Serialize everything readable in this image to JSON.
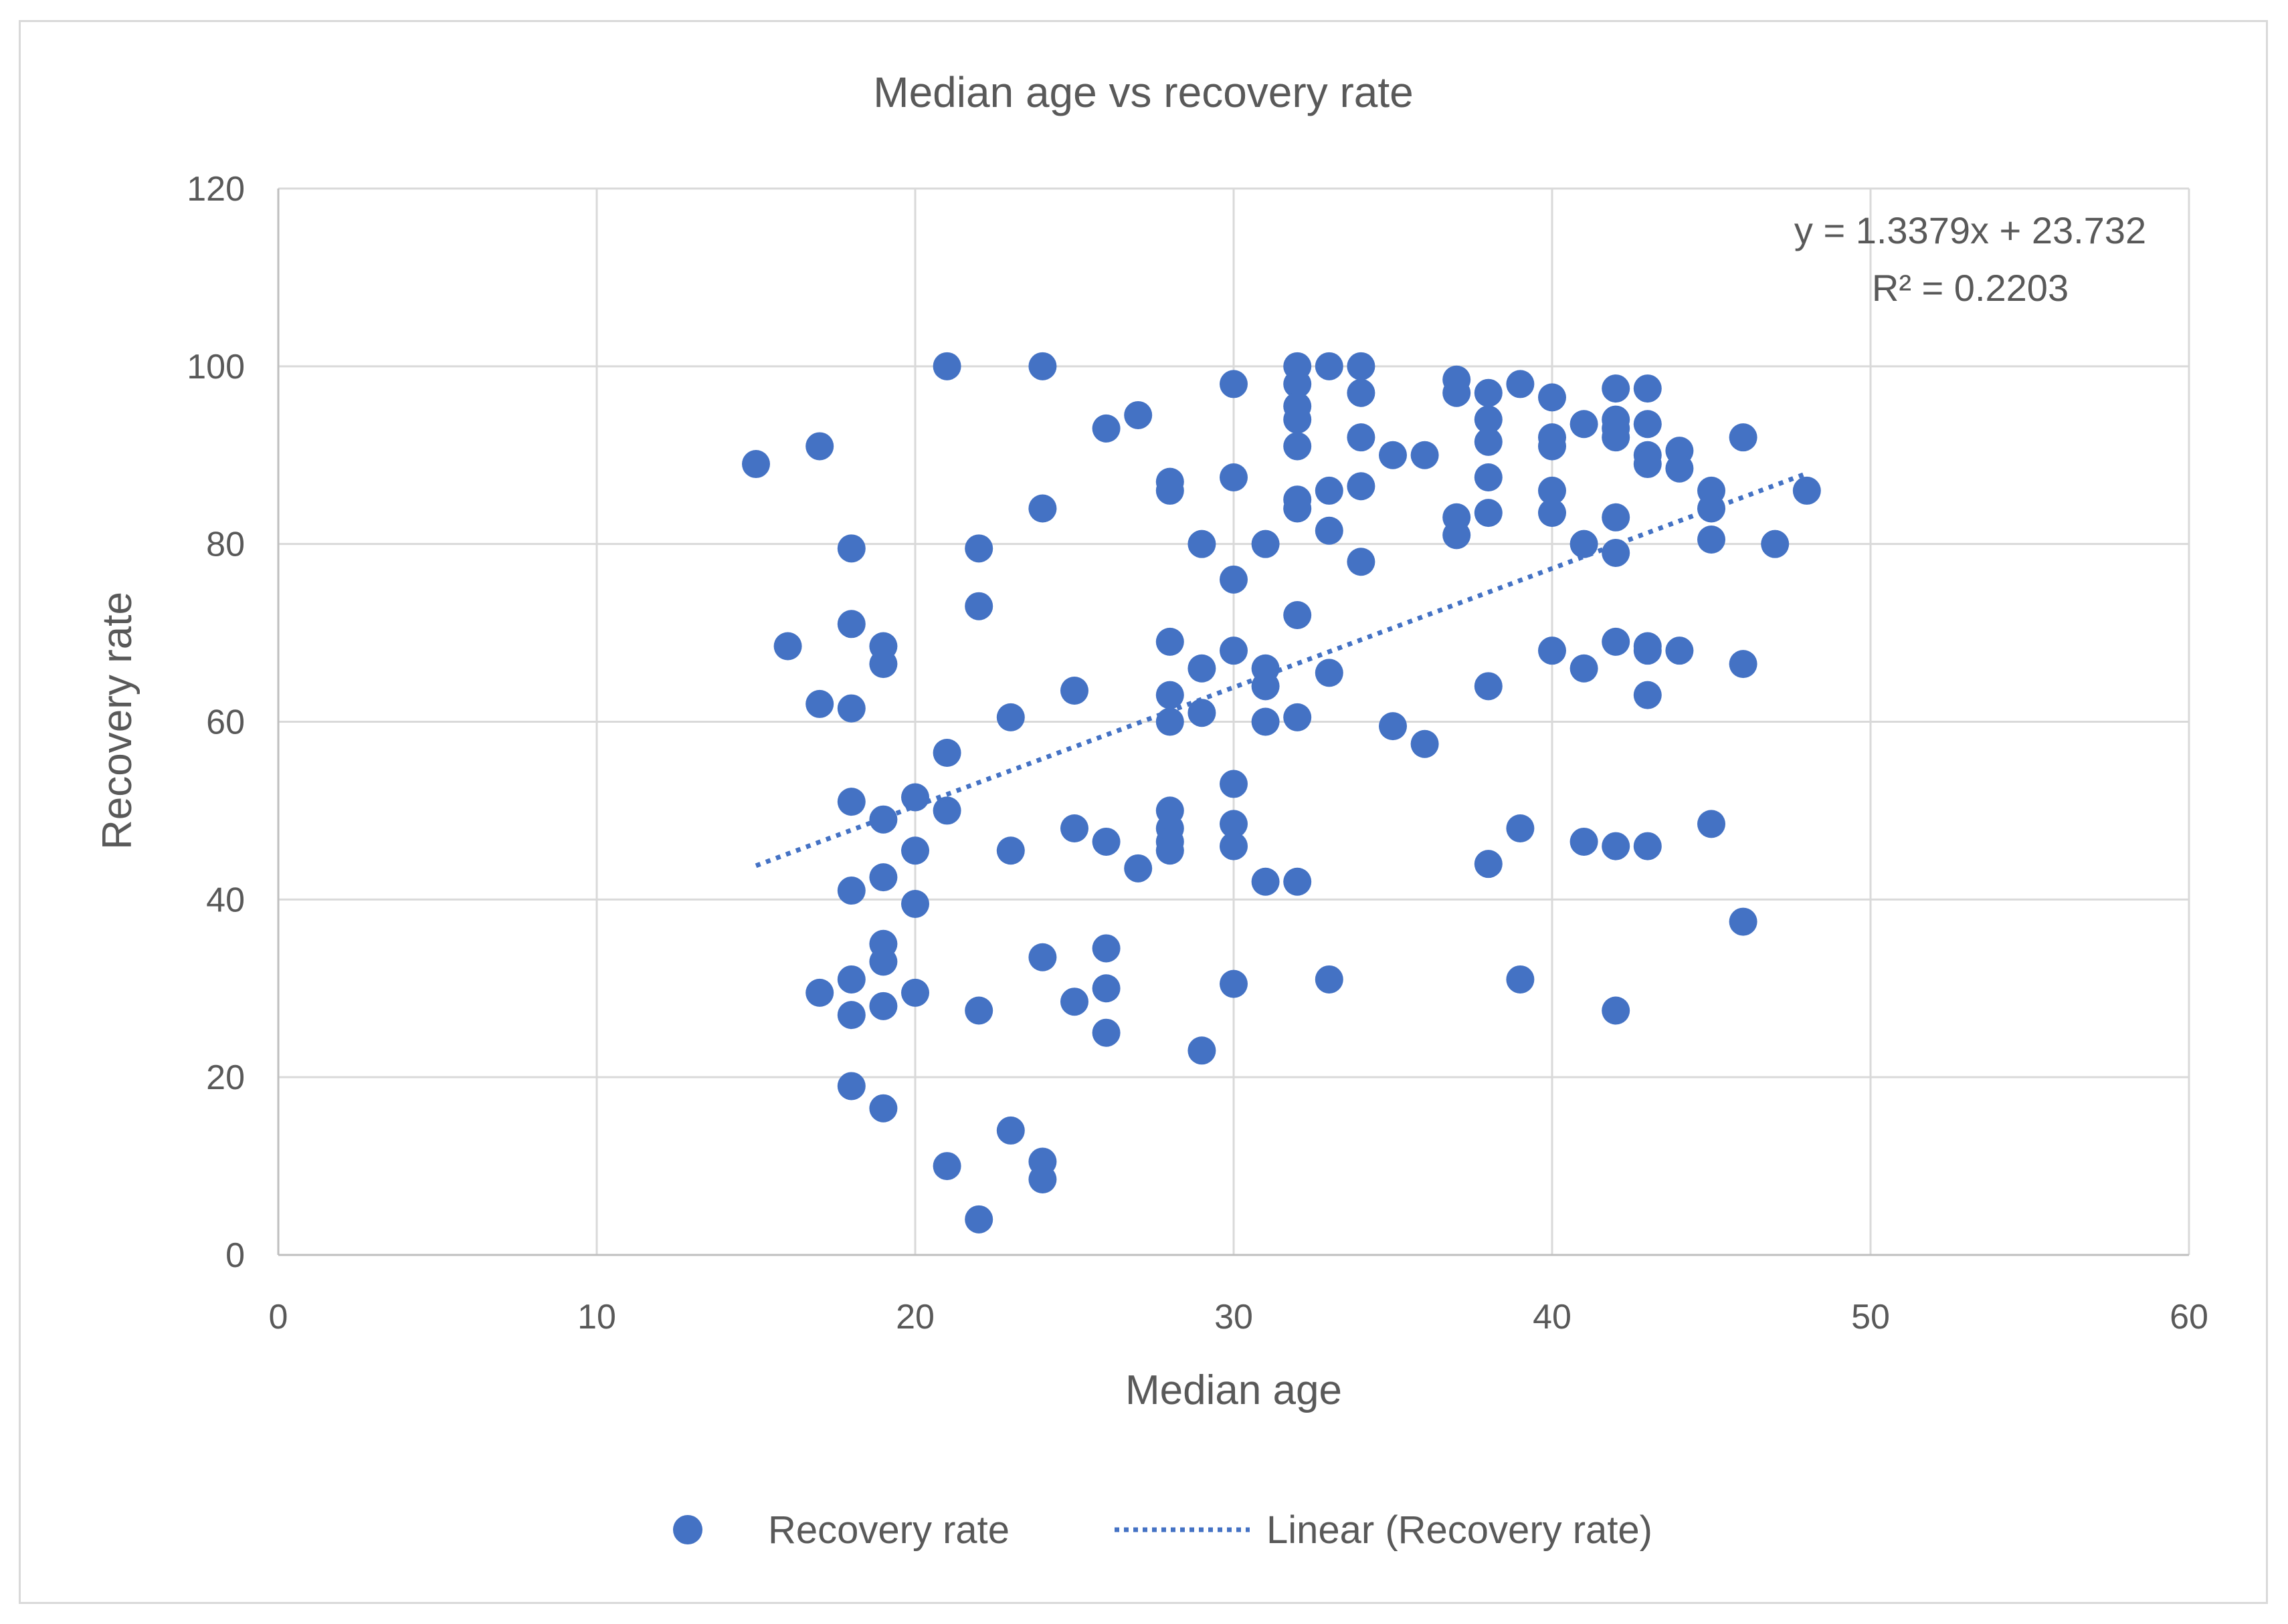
{
  "chart_data": {
    "type": "scatter",
    "title": "Median age vs recovery rate",
    "xlabel": "Median age",
    "ylabel": "Recovery rate",
    "xlim": [
      0,
      60
    ],
    "ylim": [
      0,
      120
    ],
    "x_ticks": [
      0,
      10,
      20,
      30,
      40,
      50,
      60
    ],
    "y_ticks": [
      0,
      20,
      40,
      60,
      80,
      100,
      120
    ],
    "grid": true,
    "legend_position": "bottom",
    "colors": {
      "marker": "#4472c4",
      "trendline": "#4472c4",
      "grid": "#d9d9d9",
      "text": "#595959"
    },
    "series": [
      {
        "name": "Recovery rate",
        "points": [
          [
            15,
            89
          ],
          [
            16,
            68.5
          ],
          [
            17,
            91
          ],
          [
            17,
            62
          ],
          [
            17,
            29.5
          ],
          [
            18,
            79.5
          ],
          [
            18,
            71
          ],
          [
            18,
            61.5
          ],
          [
            18,
            51
          ],
          [
            18,
            41
          ],
          [
            18,
            31
          ],
          [
            18,
            27
          ],
          [
            18,
            19
          ],
          [
            19,
            68.5
          ],
          [
            19,
            66.5
          ],
          [
            19,
            49
          ],
          [
            19,
            42.5
          ],
          [
            19,
            35
          ],
          [
            19,
            33
          ],
          [
            19,
            28
          ],
          [
            19,
            16.5
          ],
          [
            20,
            51.5
          ],
          [
            20,
            45.5
          ],
          [
            20,
            39.5
          ],
          [
            20,
            29.5
          ],
          [
            21,
            100
          ],
          [
            21,
            56.5
          ],
          [
            21,
            50
          ],
          [
            21,
            10
          ],
          [
            22,
            79.5
          ],
          [
            22,
            73
          ],
          [
            22,
            27.5
          ],
          [
            22,
            4
          ],
          [
            23,
            60.5
          ],
          [
            23,
            45.5
          ],
          [
            23,
            14
          ],
          [
            24,
            100
          ],
          [
            24,
            84
          ],
          [
            24,
            33.5
          ],
          [
            24,
            10.5
          ],
          [
            24,
            8.5
          ],
          [
            25,
            63.5
          ],
          [
            25,
            48
          ],
          [
            25,
            28.5
          ],
          [
            26,
            93
          ],
          [
            26,
            46.5
          ],
          [
            26,
            34.5
          ],
          [
            26,
            30
          ],
          [
            26,
            25
          ],
          [
            27,
            94.5
          ],
          [
            27,
            43.5
          ],
          [
            28,
            87
          ],
          [
            28,
            86
          ],
          [
            28,
            69
          ],
          [
            28,
            63
          ],
          [
            28,
            60
          ],
          [
            28,
            50
          ],
          [
            28,
            48
          ],
          [
            28,
            46.5
          ],
          [
            28,
            45.5
          ],
          [
            29,
            80
          ],
          [
            29,
            66
          ],
          [
            29,
            61
          ],
          [
            29,
            23
          ],
          [
            30,
            98
          ],
          [
            30,
            87.5
          ],
          [
            30,
            76
          ],
          [
            30,
            68
          ],
          [
            30,
            53
          ],
          [
            30,
            48.5
          ],
          [
            30,
            46
          ],
          [
            30,
            30.5
          ],
          [
            31,
            80
          ],
          [
            31,
            66
          ],
          [
            31,
            64
          ],
          [
            31,
            60
          ],
          [
            31,
            42
          ],
          [
            32,
            100
          ],
          [
            32,
            98
          ],
          [
            32,
            95.5
          ],
          [
            32,
            94
          ],
          [
            32,
            91
          ],
          [
            32,
            85
          ],
          [
            32,
            84
          ],
          [
            32,
            72
          ],
          [
            32,
            60.5
          ],
          [
            32,
            42
          ],
          [
            33,
            100
          ],
          [
            33,
            86
          ],
          [
            33,
            81.5
          ],
          [
            33,
            65.5
          ],
          [
            33,
            31
          ],
          [
            34,
            100
          ],
          [
            34,
            97
          ],
          [
            34,
            92
          ],
          [
            34,
            86.5
          ],
          [
            34,
            78
          ],
          [
            35,
            90
          ],
          [
            35,
            59.5
          ],
          [
            36,
            90
          ],
          [
            36,
            57.5
          ],
          [
            37,
            98.5
          ],
          [
            37,
            97
          ],
          [
            37,
            83
          ],
          [
            37,
            81
          ],
          [
            38,
            97
          ],
          [
            38,
            94
          ],
          [
            38,
            91.5
          ],
          [
            38,
            87.5
          ],
          [
            38,
            83.5
          ],
          [
            38,
            64
          ],
          [
            38,
            44
          ],
          [
            39,
            98
          ],
          [
            39,
            48
          ],
          [
            39,
            31
          ],
          [
            40,
            96.5
          ],
          [
            40,
            92
          ],
          [
            40,
            91
          ],
          [
            40,
            86
          ],
          [
            40,
            83.5
          ],
          [
            40,
            68
          ],
          [
            41,
            93.5
          ],
          [
            41,
            80
          ],
          [
            41,
            66
          ],
          [
            41,
            46.5
          ],
          [
            42,
            97.5
          ],
          [
            42,
            94
          ],
          [
            42,
            93
          ],
          [
            42,
            92
          ],
          [
            42,
            83
          ],
          [
            42,
            79
          ],
          [
            42,
            69
          ],
          [
            42,
            46
          ],
          [
            42,
            27.5
          ],
          [
            43,
            97.5
          ],
          [
            43,
            93.5
          ],
          [
            43,
            90
          ],
          [
            43,
            89
          ],
          [
            43,
            68.5
          ],
          [
            43,
            68
          ],
          [
            43,
            63
          ],
          [
            43,
            46
          ],
          [
            44,
            90.5
          ],
          [
            44,
            88.5
          ],
          [
            44,
            68
          ],
          [
            45,
            86
          ],
          [
            45,
            84
          ],
          [
            45,
            80.5
          ],
          [
            45,
            48.5
          ],
          [
            46,
            92
          ],
          [
            46,
            66.5
          ],
          [
            46,
            37.5
          ],
          [
            47,
            80
          ],
          [
            48,
            86
          ]
        ]
      }
    ],
    "trendline": {
      "name": "Linear (Recovery rate)",
      "type": "linear",
      "slope": 1.3379,
      "intercept": 23.732,
      "x_range": [
        15,
        48
      ],
      "equation": "y = 1.3379x + 23.732",
      "r_squared": "R² = 0.2203"
    },
    "legend": {
      "scatter_label": "Recovery rate",
      "trend_label": "Linear (Recovery rate)"
    }
  }
}
